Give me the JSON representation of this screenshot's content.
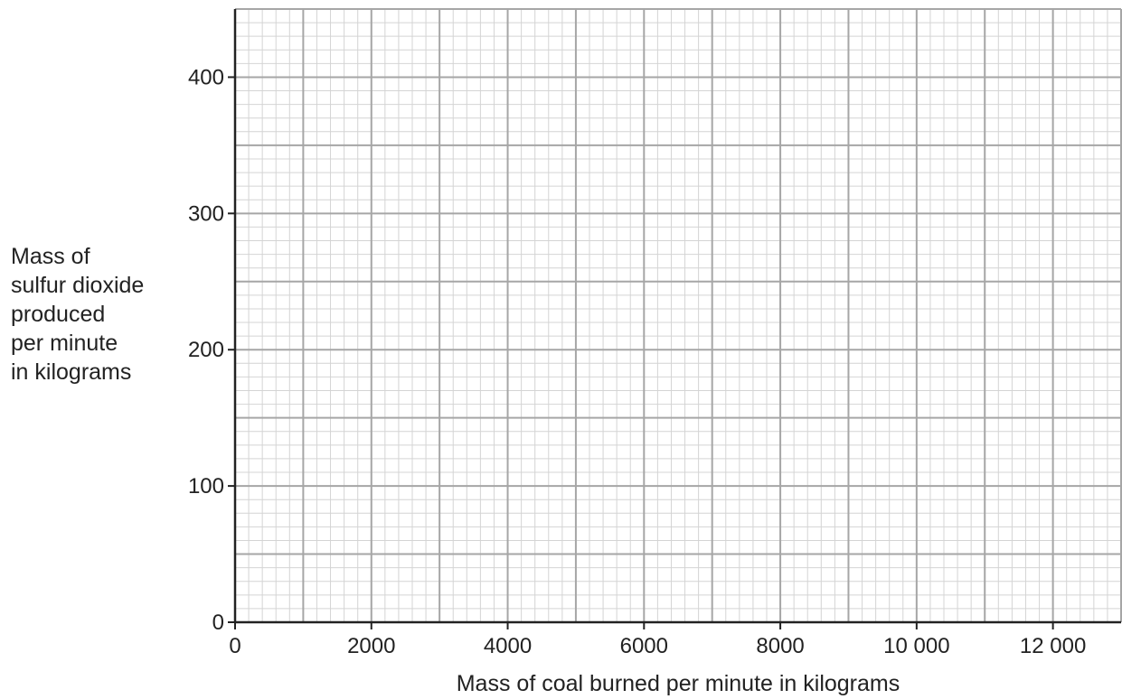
{
  "chart_data": {
    "type": "scatter",
    "title": "",
    "xlabel": "Mass of coal burned per minute in kilograms",
    "ylabel_lines": [
      "Mass of",
      "sulfur dioxide",
      "produced",
      "per minute",
      "in kilograms"
    ],
    "xlim": [
      0,
      13000
    ],
    "ylim": [
      0,
      450
    ],
    "x_ticks": [
      0,
      2000,
      4000,
      6000,
      8000,
      10000,
      12000
    ],
    "x_tick_labels": [
      "0",
      "2000",
      "4000",
      "6000",
      "8000",
      "10 000",
      "12 000"
    ],
    "y_ticks": [
      0,
      100,
      200,
      300,
      400
    ],
    "y_tick_labels": [
      "0",
      "100",
      "200",
      "300",
      "400"
    ],
    "grid": true,
    "grid_minor_x": 200,
    "grid_minor_y": 10,
    "grid_medium_x": 1000,
    "grid_medium_y": 50,
    "series": []
  },
  "colors": {
    "axis": "#222222",
    "grid_minor": "#d4d4d4",
    "grid_major": "#a6a6a6"
  }
}
